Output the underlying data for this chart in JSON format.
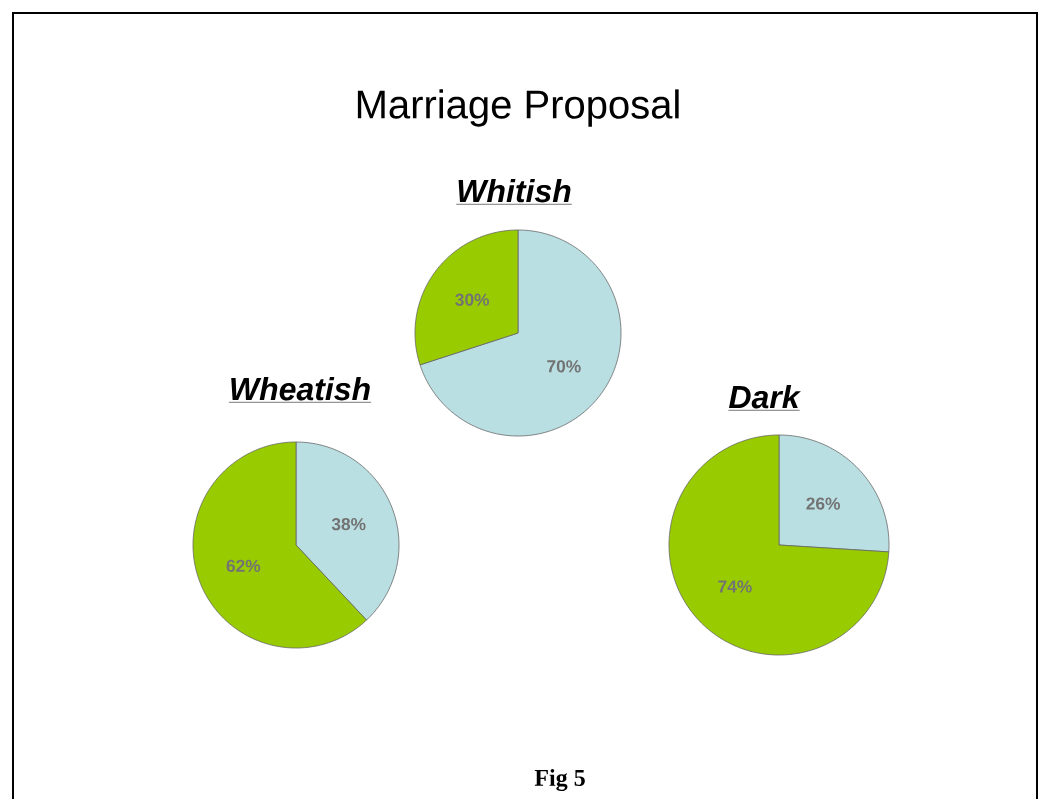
{
  "chart_data": [
    {
      "type": "other",
      "title": "Marriage Proposal",
      "annotations": [
        "Fig 5"
      ]
    },
    {
      "type": "pie",
      "title": "Whitish",
      "categories": [
        null,
        null
      ],
      "values": [
        70,
        30
      ],
      "colors": [
        "#b9dfe3",
        "#99cc00"
      ],
      "value_labels": [
        "70%",
        "30%"
      ]
    },
    {
      "type": "pie",
      "title": "Wheatish",
      "categories": [
        null,
        null
      ],
      "values": [
        38,
        62
      ],
      "colors": [
        "#b9dfe3",
        "#99cc00"
      ],
      "value_labels": [
        "38%",
        "62%"
      ]
    },
    {
      "type": "pie",
      "title": "Dark",
      "categories": [
        null,
        null
      ],
      "values": [
        26,
        74
      ],
      "colors": [
        "#b9dfe3",
        "#99cc00"
      ],
      "value_labels": [
        "26%",
        "74%"
      ]
    }
  ]
}
